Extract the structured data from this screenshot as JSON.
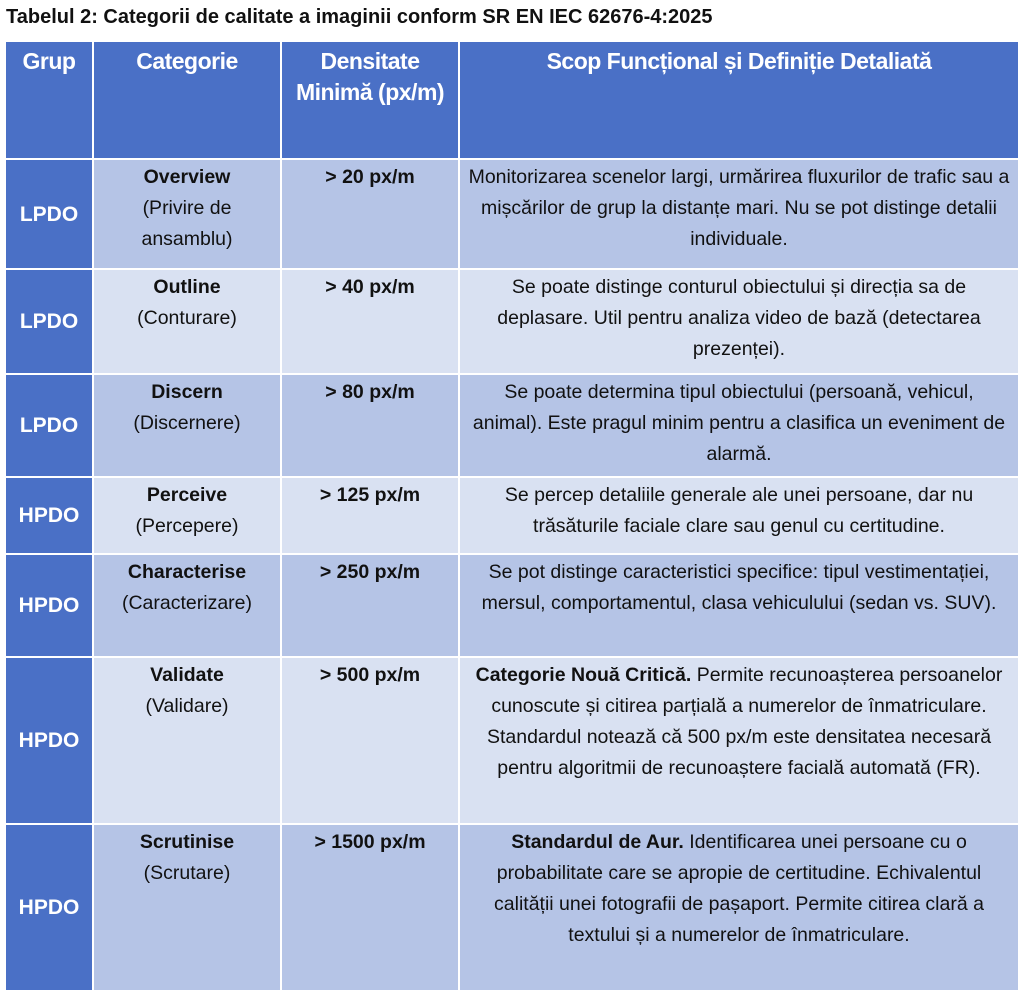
{
  "title": "Tabelul 2: Categorii de calitate a imaginii conform SR EN IEC 62676-4:2025",
  "table": {
    "header": [
      "Grup",
      "Categorie",
      "Densitate Minimă (px/m)",
      "Scop Funcțional și Definiție Detaliată"
    ],
    "rows": [
      {
        "group": "LPDO",
        "name": "Overview",
        "translation": "(Privire de ansamblu)",
        "density": "> 20 px/m",
        "text": "Monitorizarea scenelor largi, urmărirea fluxurilor de trafic sau a mișcărilor de grup la distanțe mari. Nu se pot distinge detalii individuale."
      },
      {
        "group": "LPDO",
        "name": "Outline",
        "translation": "(Conturare)",
        "density": "> 40 px/m",
        "text": "Se poate distinge conturul obiectului și direcția sa de deplasare. Util pentru analiza video de bază (detectarea prezenței)."
      },
      {
        "group": "LPDO",
        "name": "Discern",
        "translation": "(Discernere)",
        "density": "> 80 px/m",
        "text": "Se poate determina tipul obiectului (persoană, vehicul, animal). Este pragul minim pentru a clasifica un eveniment de alarmă."
      },
      {
        "group": "HPDO",
        "name": "Perceive",
        "translation": "(Percepere)",
        "density": "> 125 px/m",
        "text": "Se percep detaliile generale ale unei persoane, dar nu trăsăturile faciale clare sau genul cu certitudine."
      },
      {
        "group": "HPDO",
        "name": "Characterise",
        "translation": "(Caracterizare)",
        "density": "> 250 px/m",
        "text": "Se pot distinge caracteristici specifice: tipul vestimentației, mersul, comportamentul, clasa vehiculului (sedan vs. SUV)."
      },
      {
        "group": "HPDO",
        "name": "Validate",
        "translation": "(Validare)",
        "density": "> 500 px/m",
        "lead": "Categorie Nouă Critică.",
        "text": "Permite recunoașterea persoanelor cunoscute și citirea parțială a numerelor de înmatriculare. Standardul notează că 500 px/m este densitatea necesară pentru algoritmii de recunoaștere facială automată (FR)."
      },
      {
        "group": "HPDO",
        "name": "Scrutinise",
        "translation": "(Scrutare)",
        "density": "> 1500 px/m",
        "lead": "Standardul de Aur.",
        "text": "Identificarea unei persoane cu o probabilitate care se apropie de certitudine. Echivalentul calității unei fotografii de pașaport. Permite citirea clară a textului și a numerelor de înmatriculare."
      }
    ]
  }
}
